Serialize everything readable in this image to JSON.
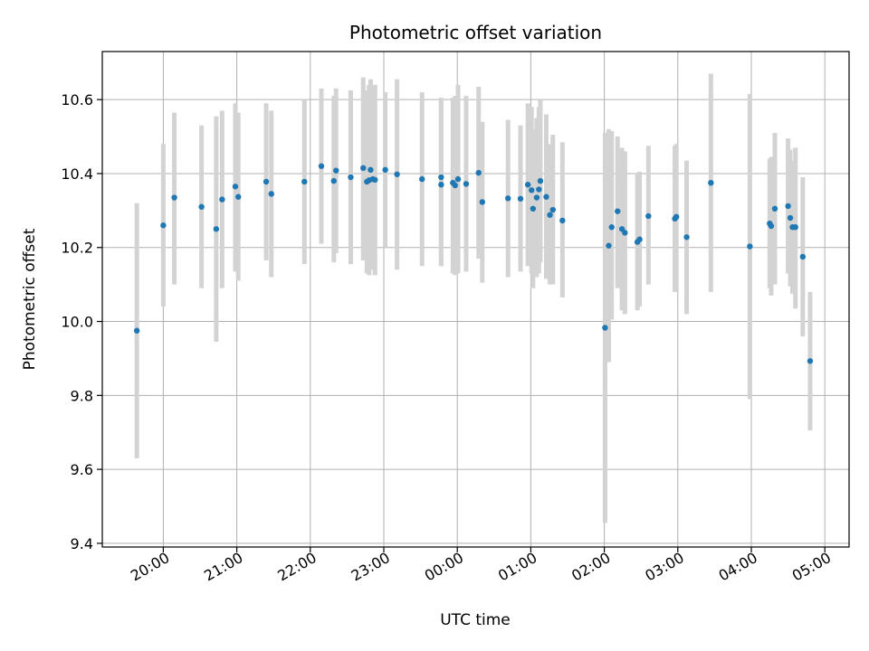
{
  "chart_data": {
    "type": "scatter",
    "title": "Photometric offset variation",
    "xlabel": "UTC time",
    "ylabel": "Photometric offset",
    "x_unit": "hours since 00:00 UTC",
    "xlim": [
      -4.83,
      5.33
    ],
    "ylim": [
      9.39,
      10.73
    ],
    "grid": true,
    "colors": {
      "point": "#1f77b4",
      "errorbar": "#d3d3d3"
    },
    "x_ticks": [
      {
        "value": -4,
        "label": "20:00"
      },
      {
        "value": -3,
        "label": "21:00"
      },
      {
        "value": -2,
        "label": "22:00"
      },
      {
        "value": -1,
        "label": "23:00"
      },
      {
        "value": 0,
        "label": "00:00"
      },
      {
        "value": 1,
        "label": "01:00"
      },
      {
        "value": 2,
        "label": "02:00"
      },
      {
        "value": 3,
        "label": "03:00"
      },
      {
        "value": 4,
        "label": "04:00"
      },
      {
        "value": 5,
        "label": "05:00"
      }
    ],
    "y_ticks": [
      {
        "value": 9.4,
        "label": "9.4"
      },
      {
        "value": 9.6,
        "label": "9.6"
      },
      {
        "value": 9.8,
        "label": "9.8"
      },
      {
        "value": 10.0,
        "label": "10.0"
      },
      {
        "value": 10.2,
        "label": "10.2"
      },
      {
        "value": 10.4,
        "label": "10.4"
      },
      {
        "value": 10.6,
        "label": "10.6"
      }
    ],
    "series": [
      {
        "name": "offset",
        "points": [
          {
            "x": -4.36,
            "y": 9.975,
            "lo": 9.63,
            "hi": 10.32
          },
          {
            "x": -4.0,
            "y": 10.26,
            "lo": 10.04,
            "hi": 10.48
          },
          {
            "x": -3.85,
            "y": 10.335,
            "lo": 10.1,
            "hi": 10.565
          },
          {
            "x": -3.48,
            "y": 10.31,
            "lo": 10.09,
            "hi": 10.53
          },
          {
            "x": -3.28,
            "y": 10.25,
            "lo": 9.945,
            "hi": 10.555
          },
          {
            "x": -3.2,
            "y": 10.33,
            "lo": 10.09,
            "hi": 10.57
          },
          {
            "x": -3.02,
            "y": 10.365,
            "lo": 10.135,
            "hi": 10.59
          },
          {
            "x": -2.98,
            "y": 10.337,
            "lo": 10.11,
            "hi": 10.565
          },
          {
            "x": -2.6,
            "y": 10.378,
            "lo": 10.165,
            "hi": 10.59
          },
          {
            "x": -2.53,
            "y": 10.345,
            "lo": 10.12,
            "hi": 10.57
          },
          {
            "x": -2.08,
            "y": 10.378,
            "lo": 10.155,
            "hi": 10.6
          },
          {
            "x": -1.85,
            "y": 10.42,
            "lo": 10.21,
            "hi": 10.63
          },
          {
            "x": -1.68,
            "y": 10.38,
            "lo": 10.16,
            "hi": 10.61
          },
          {
            "x": -1.65,
            "y": 10.408,
            "lo": 10.185,
            "hi": 10.63
          },
          {
            "x": -1.45,
            "y": 10.39,
            "lo": 10.155,
            "hi": 10.625
          },
          {
            "x": -1.28,
            "y": 10.415,
            "lo": 10.165,
            "hi": 10.66
          },
          {
            "x": -1.23,
            "y": 10.378,
            "lo": 10.13,
            "hi": 10.625
          },
          {
            "x": -1.18,
            "y": 10.41,
            "lo": 10.16,
            "hi": 10.655
          },
          {
            "x": -1.15,
            "y": 10.385,
            "lo": 10.14,
            "hi": 10.63
          },
          {
            "x": -1.12,
            "y": 10.383,
            "lo": 10.125,
            "hi": 10.64
          },
          {
            "x": -1.2,
            "y": 10.382,
            "lo": 10.125,
            "hi": 10.64
          },
          {
            "x": -0.98,
            "y": 10.41,
            "lo": 10.2,
            "hi": 10.62
          },
          {
            "x": -0.82,
            "y": 10.398,
            "lo": 10.14,
            "hi": 10.655
          },
          {
            "x": -0.48,
            "y": 10.385,
            "lo": 10.15,
            "hi": 10.62
          },
          {
            "x": -0.22,
            "y": 10.39,
            "lo": 10.15,
            "hi": 10.605
          },
          {
            "x": -0.22,
            "y": 10.37,
            "lo": 10.15,
            "hi": 10.59
          },
          {
            "x": -0.06,
            "y": 10.375,
            "lo": 10.13,
            "hi": 10.605
          },
          {
            "x": -0.03,
            "y": 10.368,
            "lo": 10.125,
            "hi": 10.61
          },
          {
            "x": 0.01,
            "y": 10.385,
            "lo": 10.13,
            "hi": 10.64
          },
          {
            "x": 0.12,
            "y": 10.372,
            "lo": 10.135,
            "hi": 10.61
          },
          {
            "x": 0.29,
            "y": 10.402,
            "lo": 10.17,
            "hi": 10.635
          },
          {
            "x": 0.34,
            "y": 10.323,
            "lo": 10.105,
            "hi": 10.54
          },
          {
            "x": 0.69,
            "y": 10.333,
            "lo": 10.12,
            "hi": 10.545
          },
          {
            "x": 0.86,
            "y": 10.332,
            "lo": 10.135,
            "hi": 10.53
          },
          {
            "x": 0.96,
            "y": 10.37,
            "lo": 10.15,
            "hi": 10.59
          },
          {
            "x": 1.01,
            "y": 10.355,
            "lo": 10.13,
            "hi": 10.58
          },
          {
            "x": 1.03,
            "y": 10.305,
            "lo": 10.09,
            "hi": 10.52
          },
          {
            "x": 1.08,
            "y": 10.335,
            "lo": 10.12,
            "hi": 10.55
          },
          {
            "x": 1.11,
            "y": 10.357,
            "lo": 10.13,
            "hi": 10.58
          },
          {
            "x": 1.13,
            "y": 10.38,
            "lo": 10.16,
            "hi": 10.6
          },
          {
            "x": 1.21,
            "y": 10.337,
            "lo": 10.115,
            "hi": 10.56
          },
          {
            "x": 1.26,
            "y": 10.288,
            "lo": 10.1,
            "hi": 10.48
          },
          {
            "x": 1.3,
            "y": 10.302,
            "lo": 10.1,
            "hi": 10.505
          },
          {
            "x": 1.43,
            "y": 10.273,
            "lo": 10.065,
            "hi": 10.485
          },
          {
            "x": 2.01,
            "y": 9.983,
            "lo": 9.455,
            "hi": 10.51
          },
          {
            "x": 2.06,
            "y": 10.205,
            "lo": 9.89,
            "hi": 10.52
          },
          {
            "x": 2.1,
            "y": 10.255,
            "lo": 10.005,
            "hi": 10.515
          },
          {
            "x": 2.18,
            "y": 10.298,
            "lo": 10.09,
            "hi": 10.5
          },
          {
            "x": 2.24,
            "y": 10.25,
            "lo": 10.03,
            "hi": 10.47
          },
          {
            "x": 2.28,
            "y": 10.24,
            "lo": 10.02,
            "hi": 10.46
          },
          {
            "x": 2.45,
            "y": 10.215,
            "lo": 10.03,
            "hi": 10.4
          },
          {
            "x": 2.48,
            "y": 10.222,
            "lo": 10.04,
            "hi": 10.405
          },
          {
            "x": 2.6,
            "y": 10.285,
            "lo": 10.1,
            "hi": 10.475
          },
          {
            "x": 2.96,
            "y": 10.278,
            "lo": 10.08,
            "hi": 10.475
          },
          {
            "x": 2.98,
            "y": 10.283,
            "lo": 10.085,
            "hi": 10.48
          },
          {
            "x": 3.12,
            "y": 10.228,
            "lo": 10.02,
            "hi": 10.435
          },
          {
            "x": 3.45,
            "y": 10.375,
            "lo": 10.08,
            "hi": 10.67
          },
          {
            "x": 3.98,
            "y": 10.203,
            "lo": 9.79,
            "hi": 10.615
          },
          {
            "x": 4.25,
            "y": 10.265,
            "lo": 10.09,
            "hi": 10.44
          },
          {
            "x": 4.27,
            "y": 10.258,
            "lo": 10.07,
            "hi": 10.445
          },
          {
            "x": 4.32,
            "y": 10.305,
            "lo": 10.1,
            "hi": 10.51
          },
          {
            "x": 4.5,
            "y": 10.312,
            "lo": 10.13,
            "hi": 10.495
          },
          {
            "x": 4.53,
            "y": 10.28,
            "lo": 10.095,
            "hi": 10.465
          },
          {
            "x": 4.56,
            "y": 10.255,
            "lo": 10.075,
            "hi": 10.435
          },
          {
            "x": 4.6,
            "y": 10.255,
            "lo": 10.035,
            "hi": 10.47
          },
          {
            "x": 4.7,
            "y": 10.175,
            "lo": 9.96,
            "hi": 10.39
          },
          {
            "x": 4.8,
            "y": 9.893,
            "lo": 9.705,
            "hi": 10.08
          }
        ]
      }
    ]
  }
}
